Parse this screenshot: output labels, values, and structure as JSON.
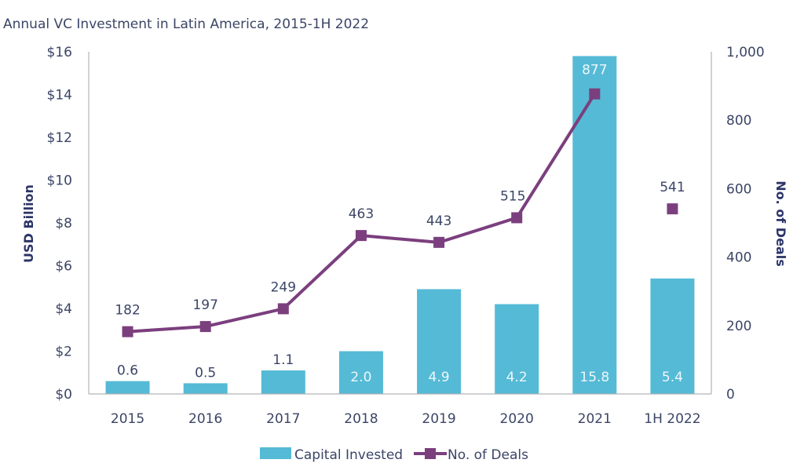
{
  "chart_data": {
    "type": "bar",
    "title": "Annual VC Investment in Latin America, 2015-1H 2022",
    "categories": [
      "2015",
      "2016",
      "2017",
      "2018",
      "2019",
      "2020",
      "2021",
      "1H 2022"
    ],
    "series": [
      {
        "name": "Capital Invested",
        "type": "bar",
        "axis": "left",
        "color": "#55bad6",
        "values": [
          0.6,
          0.5,
          1.1,
          2.0,
          4.9,
          4.2,
          15.8,
          5.4
        ],
        "labels": [
          "0.6",
          "0.5",
          "1.1",
          "2.0",
          "4.9",
          "4.2",
          "15.8",
          "5.4"
        ]
      },
      {
        "name": "No. of Deals",
        "type": "line",
        "axis": "right",
        "color": "#7b3f7e",
        "values": [
          182,
          197,
          249,
          463,
          443,
          515,
          877,
          541
        ],
        "labels": [
          "182",
          "197",
          "249",
          "463",
          "443",
          "515",
          "877",
          "541"
        ],
        "line_connected_through_index": 6
      }
    ],
    "ylabel": "USD Billion",
    "ylabel_right": "No. of Deals",
    "ylim": [
      0,
      16
    ],
    "ylim_right": [
      0,
      1000
    ],
    "yticks": [
      "$0",
      "$2",
      "$4",
      "$6",
      "$8",
      "$10",
      "$12",
      "$14",
      "$16"
    ],
    "yticks_right": [
      "0",
      "200",
      "400",
      "600",
      "800",
      "1,000"
    ],
    "grid": false,
    "legend": "bottom-center"
  },
  "legend": {
    "items": [
      "Capital Invested",
      "No. of Deals"
    ]
  }
}
